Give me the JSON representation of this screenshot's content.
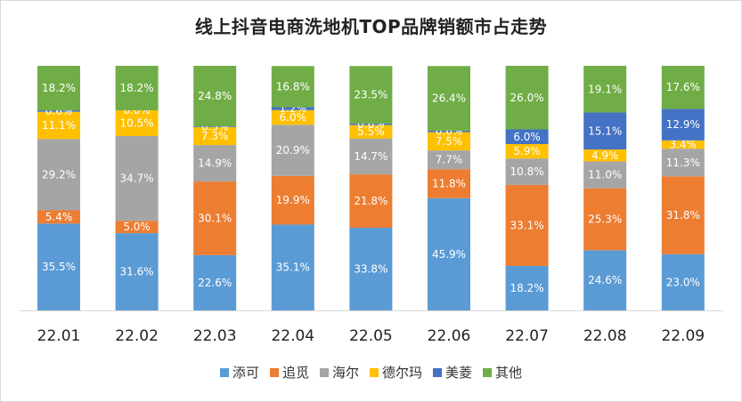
{
  "chart_data": {
    "type": "bar",
    "stacked": true,
    "percent_stacked": true,
    "title": "线上抖音电商洗地机TOP品牌销额市占走势",
    "categories": [
      "22.01",
      "22.02",
      "22.03",
      "22.04",
      "22.05",
      "22.06",
      "22.07",
      "22.08",
      "22.09"
    ],
    "series": [
      {
        "name": "添可",
        "color": "#5b9bd5",
        "values": [
          35.5,
          31.6,
          22.6,
          35.1,
          33.8,
          45.9,
          18.2,
          24.6,
          23.0
        ],
        "labels": [
          "35.5%",
          "31.6%",
          "22.6%",
          "35.1%",
          "33.8%",
          "45.9%",
          "18.2%",
          "24.6%",
          "23.0%"
        ]
      },
      {
        "name": "追觅",
        "color": "#ed7d31",
        "values": [
          5.4,
          5.0,
          30.1,
          19.9,
          21.8,
          11.8,
          33.1,
          25.3,
          31.8
        ],
        "labels": [
          "5.4%",
          "5.0%",
          "30.1%",
          "19.9%",
          "21.8%",
          "11.8%",
          "33.1%",
          "25.3%",
          "31.8%"
        ]
      },
      {
        "name": "海尔",
        "color": "#a5a5a5",
        "values": [
          29.2,
          34.7,
          14.9,
          20.9,
          14.7,
          7.7,
          10.8,
          11.0,
          11.3
        ],
        "labels": [
          "29.2%",
          "34.7%",
          "14.9%",
          "20.9%",
          "14.7%",
          "7.7%",
          "10.8%",
          "11.0%",
          "11.3%"
        ]
      },
      {
        "name": "德尔玛",
        "color": "#ffc000",
        "values": [
          11.1,
          10.5,
          7.3,
          6.0,
          5.5,
          7.5,
          5.9,
          4.9,
          3.4
        ],
        "labels": [
          "11.1%",
          "10.5%",
          "7.3%",
          "6.0%",
          "5.5%",
          "7.5%",
          "5.9%",
          "4.9%",
          "3.4%"
        ]
      },
      {
        "name": "美菱",
        "color": "#4472c4",
        "values": [
          0.6,
          0.0,
          0.3,
          1.2,
          0.6,
          0.6,
          6.0,
          15.1,
          12.9
        ],
        "labels": [
          "0.6%",
          "0.0%",
          "0.3%",
          "1.2%",
          "0.6%",
          "0.6%",
          "6.0%",
          "15.1%",
          "12.9%"
        ]
      },
      {
        "name": "其他",
        "color": "#70ad47",
        "values": [
          18.2,
          18.2,
          24.8,
          16.8,
          23.5,
          26.4,
          26.0,
          19.1,
          17.6
        ],
        "labels": [
          "18.2%",
          "18.2%",
          "24.8%",
          "16.8%",
          "23.5%",
          "26.4%",
          "26.0%",
          "19.1%",
          "17.6%"
        ]
      }
    ],
    "ylim": [
      0,
      100
    ],
    "xlabel": "",
    "ylabel": "",
    "grid": false,
    "legend_position": "bottom"
  }
}
